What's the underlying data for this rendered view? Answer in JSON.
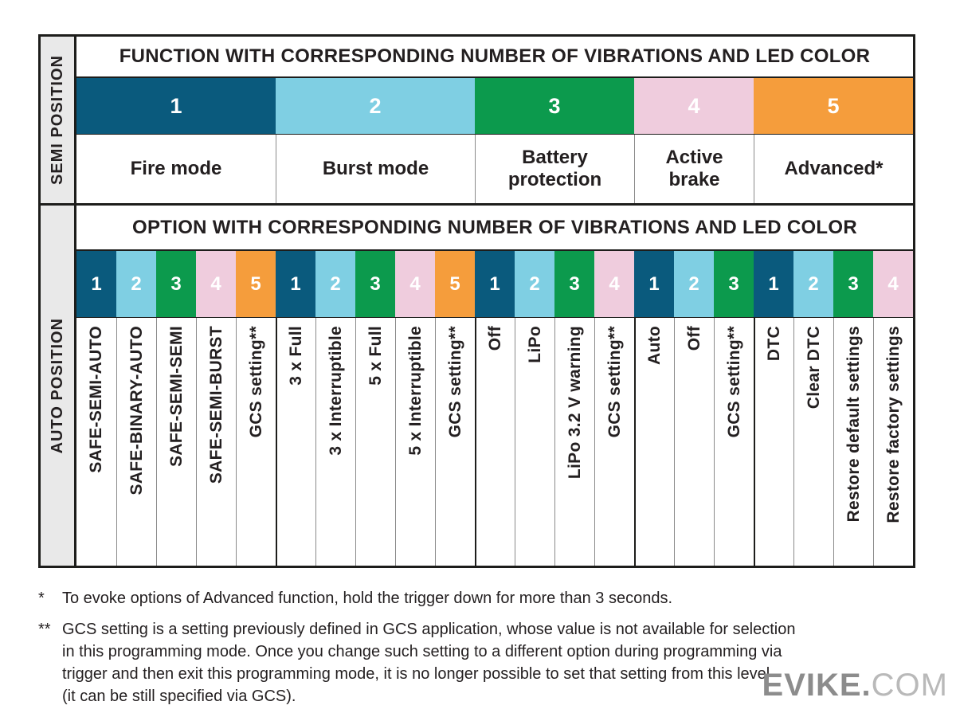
{
  "colors": {
    "dark_blue": "#0a5a7d",
    "light_blue": "#7fcfe3",
    "green": "#0c9a4d",
    "pink": "#efccdd",
    "orange": "#f59d3c",
    "sidebar_bg": "#e9e9e9",
    "border_black": "#1d1d1b",
    "thin_line_gray": "#8a8a8a",
    "number_text": "#ffffff",
    "watermark_bold": "#8c8c8c",
    "watermark_light": "#b9b9b9"
  },
  "semi": {
    "side_label": "SEMI POSITION",
    "header": "FUNCTION WITH CORRESPONDING NUMBER OF VIBRATIONS AND LED COLOR",
    "functions": [
      {
        "number": "1",
        "color": "dark_blue",
        "label": "Fire mode",
        "cols": 5
      },
      {
        "number": "2",
        "color": "light_blue",
        "label": "Burst mode",
        "cols": 5
      },
      {
        "number": "3",
        "color": "green",
        "label": "Battery protection",
        "cols": 4
      },
      {
        "number": "4",
        "color": "pink",
        "label": "Active brake",
        "cols": 3
      },
      {
        "number": "5",
        "color": "orange",
        "label": "Advanced*",
        "cols": 4
      }
    ]
  },
  "auto": {
    "side_label": "AUTO POSITION",
    "header": "OPTION WITH CORRESPONDING NUMBER OF VIBRATIONS AND LED COLOR",
    "groups": [
      {
        "function": "Fire mode",
        "options": [
          {
            "number": "1",
            "color": "dark_blue",
            "label": "SAFE-SEMI-AUTO"
          },
          {
            "number": "2",
            "color": "light_blue",
            "label": "SAFE-BINARY-AUTO"
          },
          {
            "number": "3",
            "color": "green",
            "label": "SAFE-SEMI-SEMI"
          },
          {
            "number": "4",
            "color": "pink",
            "label": "SAFE-SEMI-BURST"
          },
          {
            "number": "5",
            "color": "orange",
            "label": "GCS setting**"
          }
        ]
      },
      {
        "function": "Burst mode",
        "options": [
          {
            "number": "1",
            "color": "dark_blue",
            "label": "3 x Full"
          },
          {
            "number": "2",
            "color": "light_blue",
            "label": "3 x Interruptible"
          },
          {
            "number": "3",
            "color": "green",
            "label": "5 x Full"
          },
          {
            "number": "4",
            "color": "pink",
            "label": "5 x Interruptible"
          },
          {
            "number": "5",
            "color": "orange",
            "label": "GCS setting**"
          }
        ]
      },
      {
        "function": "Battery protection",
        "options": [
          {
            "number": "1",
            "color": "dark_blue",
            "label": "Off"
          },
          {
            "number": "2",
            "color": "light_blue",
            "label": "LiPo"
          },
          {
            "number": "3",
            "color": "green",
            "label": "LiPo 3.2 V warning"
          },
          {
            "number": "4",
            "color": "pink",
            "label": "GCS setting**"
          }
        ]
      },
      {
        "function": "Active brake",
        "options": [
          {
            "number": "1",
            "color": "dark_blue",
            "label": "Auto"
          },
          {
            "number": "2",
            "color": "light_blue",
            "label": "Off"
          },
          {
            "number": "3",
            "color": "green",
            "label": "GCS setting**"
          }
        ]
      },
      {
        "function": "Advanced",
        "options": [
          {
            "number": "1",
            "color": "dark_blue",
            "label": "DTC"
          },
          {
            "number": "2",
            "color": "light_blue",
            "label": "Clear DTC"
          },
          {
            "number": "3",
            "color": "green",
            "label": "Restore default settings"
          },
          {
            "number": "4",
            "color": "pink",
            "label": "Restore factory settings"
          }
        ]
      }
    ]
  },
  "footnotes": [
    {
      "marker": "*",
      "text": "To evoke options of Advanced function, hold the trigger down for more than 3 seconds."
    },
    {
      "marker": "**",
      "text": "GCS setting is a setting previously defined in GCS application, whose value is not available for selection\nin this programming mode. Once you change such setting to a different option during programming via\ntrigger and then exit this programming mode, it is no longer possible to set that setting from this level\n(it can be still specified via GCS)."
    }
  ],
  "watermark": {
    "bold": "EVIKE.",
    "light": "COM"
  }
}
